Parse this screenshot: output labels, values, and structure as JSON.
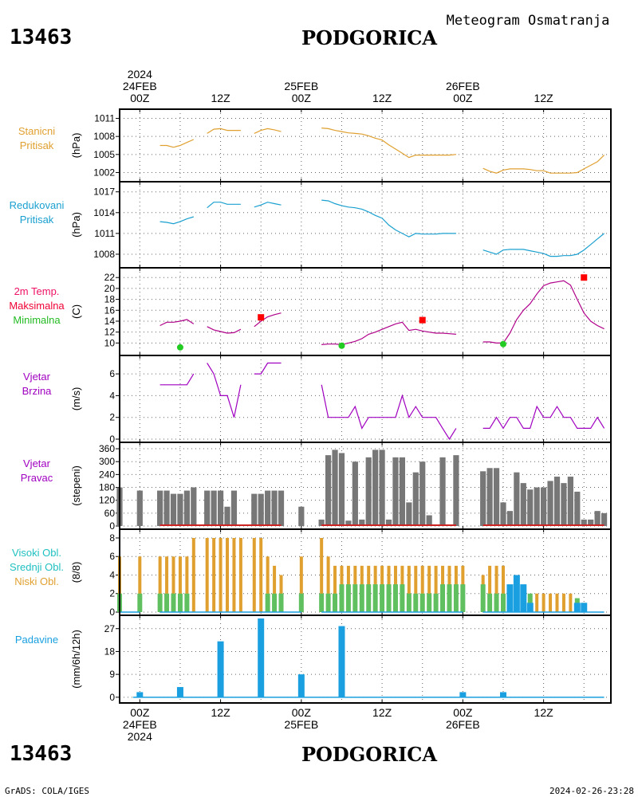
{
  "header": {
    "station_id": "13463",
    "station_name": "PODGORICA",
    "product": "Meteogram Osmatranja"
  },
  "footer": {
    "station_id": "13463",
    "station_name": "PODGORICA",
    "credit": "GrADS: COLA/IGES",
    "timestamp": "2024-02-26-23:28"
  },
  "time_axis": {
    "top_labels": [
      {
        "t": 0,
        "lines": [
          "2024",
          "24FEB",
          "00Z"
        ]
      },
      {
        "t": 12,
        "lines": [
          "12Z"
        ]
      },
      {
        "t": 24,
        "lines": [
          "25FEB",
          "00Z"
        ]
      },
      {
        "t": 36,
        "lines": [
          "12Z"
        ]
      },
      {
        "t": 48,
        "lines": [
          "26FEB",
          "00Z"
        ]
      },
      {
        "t": 60,
        "lines": [
          "12Z"
        ]
      }
    ],
    "bottom_labels": [
      {
        "t": 0,
        "lines": [
          "00Z",
          "24FEB",
          "2024"
        ]
      },
      {
        "t": 12,
        "lines": [
          "12Z"
        ]
      },
      {
        "t": 24,
        "lines": [
          "00Z",
          "25FEB"
        ]
      },
      {
        "t": 36,
        "lines": [
          "12Z"
        ]
      },
      {
        "t": 48,
        "lines": [
          "00Z",
          "26FEB"
        ]
      },
      {
        "t": 60,
        "lines": [
          "12Z"
        ]
      }
    ],
    "range_hours": [
      -3,
      70
    ]
  },
  "colors": {
    "station_pressure": "#e0a030",
    "reduced_pressure": "#1aa0d0",
    "temperature": "#b0008a",
    "max_marker": "#ff0000",
    "min_marker": "#22cc22",
    "wind": "#a000c0",
    "direction_bar": "#777777",
    "direction_base": "#cc2222",
    "high_cloud": "#20c0c0",
    "mid_cloud": "#60c060",
    "low_cloud": "#e0a030",
    "precip": "#1aa0e0"
  },
  "chart_data": [
    {
      "type": "line",
      "panel_label": [
        "Stanicni",
        "Pritisak"
      ],
      "ylabel": "(hPa)",
      "ylim": [
        1001,
        1012
      ],
      "yticks": [
        1002,
        1005,
        1008,
        1011
      ],
      "segments": [
        {
          "x": [
            3,
            4,
            5,
            6,
            7,
            8
          ],
          "y": [
            1006.5,
            1006.5,
            1006.2,
            1006.5,
            1007,
            1007.5
          ]
        },
        {
          "x": [
            10,
            11,
            12,
            13,
            14,
            15
          ],
          "y": [
            1008.5,
            1009.2,
            1009.3,
            1009,
            1009,
            1009
          ]
        },
        {
          "x": [
            17,
            18,
            19,
            20,
            21
          ],
          "y": [
            1008.5,
            1009,
            1009.3,
            1009.1,
            1008.8
          ]
        },
        {
          "x": [
            27,
            28,
            29,
            30,
            31,
            32,
            33,
            34,
            35,
            36,
            37,
            38,
            39,
            40,
            41,
            42,
            43,
            44,
            45,
            46,
            47
          ],
          "y": [
            1009.4,
            1009.3,
            1009,
            1008.8,
            1008.6,
            1008.5,
            1008.4,
            1008.1,
            1007.7,
            1007.4,
            1006.6,
            1005.9,
            1005.2,
            1004.5,
            1004.9,
            1004.9,
            1004.9,
            1004.9,
            1004.9,
            1004.9,
            1005
          ]
        },
        {
          "x": [
            51,
            52,
            53,
            54,
            55,
            56,
            57,
            58,
            59,
            60,
            61,
            62,
            63,
            64,
            65,
            66,
            67,
            68,
            69
          ],
          "y": [
            1002.7,
            1002.2,
            1001.9,
            1002.4,
            1002.6,
            1002.6,
            1002.6,
            1002.5,
            1002.3,
            1002.3,
            1001.9,
            1001.9,
            1001.9,
            1001.9,
            1002,
            1002.6,
            1003.2,
            1003.8,
            1004.9
          ]
        }
      ]
    },
    {
      "type": "line",
      "panel_label": [
        "Redukovani",
        "Pritisak"
      ],
      "ylabel": "(hPa)",
      "ylim": [
        1006.5,
        1018
      ],
      "yticks": [
        1008,
        1011,
        1014,
        1017
      ],
      "segments": [
        {
          "x": [
            3,
            4,
            5,
            6,
            7,
            8
          ],
          "y": [
            1012.7,
            1012.6,
            1012.4,
            1012.7,
            1013.1,
            1013.4
          ]
        },
        {
          "x": [
            10,
            11,
            12,
            13,
            14,
            15
          ],
          "y": [
            1014.7,
            1015.5,
            1015.5,
            1015.2,
            1015.2,
            1015.2
          ]
        },
        {
          "x": [
            17,
            18,
            19,
            20,
            21
          ],
          "y": [
            1014.8,
            1015.1,
            1015.5,
            1015.3,
            1015.1
          ]
        },
        {
          "x": [
            27,
            28,
            29,
            30,
            31,
            32,
            33,
            34,
            35,
            36,
            37,
            38,
            39,
            40,
            41,
            42,
            43,
            44,
            45,
            46,
            47
          ],
          "y": [
            1015.8,
            1015.7,
            1015.3,
            1015,
            1014.8,
            1014.7,
            1014.5,
            1014.1,
            1013.6,
            1013.2,
            1012.2,
            1011.5,
            1011,
            1010.5,
            1011,
            1010.9,
            1010.9,
            1010.9,
            1011,
            1011,
            1011
          ]
        },
        {
          "x": [
            51,
            52,
            53,
            54,
            55,
            56,
            57,
            58,
            59,
            60,
            61,
            62,
            63,
            64,
            65,
            66,
            67,
            68,
            69
          ],
          "y": [
            1008.6,
            1008.3,
            1008,
            1008.6,
            1008.7,
            1008.7,
            1008.7,
            1008.5,
            1008.3,
            1008.1,
            1007.7,
            1007.7,
            1007.8,
            1007.8,
            1008,
            1008.6,
            1009.4,
            1010.2,
            1011
          ]
        }
      ]
    },
    {
      "type": "line",
      "panel_label": [
        "2m Temp.",
        "Maksimalna",
        "Minimalna"
      ],
      "ylabel": "(C)",
      "ylim": [
        8.3,
        23.2
      ],
      "yticks": [
        10,
        12,
        14,
        16,
        18,
        20,
        22
      ],
      "segments": [
        {
          "x": [
            3,
            4,
            5,
            6,
            7,
            8
          ],
          "y": [
            13.2,
            13.8,
            13.8,
            14,
            14.3,
            13.5
          ]
        },
        {
          "x": [
            10,
            11,
            12,
            13,
            14,
            15
          ],
          "y": [
            13,
            12.4,
            12.1,
            11.8,
            11.9,
            12.5
          ]
        },
        {
          "x": [
            17,
            18,
            19,
            20,
            21
          ],
          "y": [
            13,
            14,
            14.8,
            15.2,
            15.5
          ]
        },
        {
          "x": [
            27,
            28,
            29,
            30,
            31,
            32,
            33,
            34,
            35,
            36,
            37,
            38,
            39,
            40,
            41,
            42,
            43,
            44,
            45,
            46,
            47
          ],
          "y": [
            9.7,
            9.8,
            9.8,
            9.7,
            10,
            10.3,
            10.8,
            11.6,
            12,
            12.5,
            13,
            13.5,
            13.8,
            12.3,
            12.5,
            12.2,
            12,
            11.8,
            11.8,
            11.7,
            11.6
          ]
        },
        {
          "x": [
            51,
            52,
            53,
            54,
            55,
            56,
            57,
            58,
            59,
            60,
            61,
            62,
            63,
            64,
            65,
            66,
            67,
            68,
            69
          ],
          "y": [
            10.2,
            10.2,
            10,
            10,
            11.8,
            14.3,
            16,
            17.2,
            19,
            20.5,
            21,
            21.2,
            21.4,
            20.6,
            18,
            15.5,
            14,
            13.2,
            12.6
          ]
        }
      ],
      "max_points": [
        {
          "x": 18,
          "y": 14.7
        },
        {
          "x": 42,
          "y": 14.2
        },
        {
          "x": 66,
          "y": 22
        }
      ],
      "min_points": [
        {
          "x": 6,
          "y": 9.2
        },
        {
          "x": 30,
          "y": 9.5
        },
        {
          "x": 54,
          "y": 9.8
        }
      ]
    },
    {
      "type": "line",
      "panel_label": [
        "Vjetar",
        "Brzina"
      ],
      "ylabel": "(m/s)",
      "ylim": [
        0,
        7.4
      ],
      "yticks": [
        0,
        2,
        4,
        6
      ],
      "segments": [
        {
          "x": [
            3,
            4,
            5,
            6,
            7,
            8
          ],
          "y": [
            5,
            5,
            5,
            5,
            5,
            6
          ]
        },
        {
          "x": [
            10,
            11,
            12,
            13,
            14,
            15
          ],
          "y": [
            7,
            6,
            4,
            4,
            2,
            5
          ]
        },
        {
          "x": [
            17,
            18,
            19,
            20,
            21
          ],
          "y": [
            6,
            6,
            7,
            7,
            7
          ]
        },
        {
          "x": [
            27,
            28,
            29,
            30,
            31,
            32,
            33,
            34,
            35,
            36,
            37,
            38,
            39,
            40,
            41,
            42,
            43,
            44,
            45,
            46,
            47
          ],
          "y": [
            5,
            2,
            2,
            2,
            2,
            3,
            1,
            2,
            2,
            2,
            2,
            2,
            4,
            2,
            3,
            2,
            2,
            2,
            1,
            0,
            1
          ]
        },
        {
          "x": [
            51,
            52,
            53,
            54,
            55,
            56,
            57,
            58,
            59,
            60,
            61,
            62,
            63,
            64,
            65,
            66,
            67,
            68,
            69
          ],
          "y": [
            1,
            1,
            2,
            1,
            2,
            2,
            1,
            1,
            3,
            2,
            2,
            3,
            2,
            2,
            1,
            1,
            1,
            2,
            1
          ]
        }
      ]
    },
    {
      "type": "bar",
      "panel_label": [
        "Vjetar",
        "Pravac"
      ],
      "ylabel": "(stepeni)",
      "ylim": [
        0,
        375
      ],
      "yticks": [
        0,
        60,
        120,
        180,
        240,
        300,
        360
      ],
      "x": [
        -3,
        0,
        3,
        4,
        5,
        6,
        7,
        8,
        10,
        11,
        12,
        13,
        14,
        15,
        17,
        18,
        19,
        20,
        21,
        24,
        27,
        28,
        29,
        30,
        31,
        32,
        33,
        34,
        35,
        36,
        37,
        38,
        39,
        40,
        41,
        42,
        43,
        44,
        45,
        46,
        47,
        48,
        51,
        52,
        53,
        54,
        55,
        56,
        57,
        58,
        59,
        60,
        61,
        62,
        63,
        64,
        65,
        66,
        67,
        68,
        69
      ],
      "values": [
        180,
        165,
        165,
        165,
        150,
        150,
        165,
        180,
        165,
        165,
        165,
        90,
        165,
        0,
        150,
        150,
        165,
        165,
        165,
        90,
        30,
        330,
        355,
        340,
        25,
        300,
        30,
        320,
        355,
        355,
        30,
        320,
        320,
        110,
        250,
        300,
        50,
        0,
        320,
        0,
        330,
        0,
        255,
        270,
        270,
        110,
        70,
        250,
        200,
        170,
        180,
        180,
        210,
        230,
        200,
        230,
        160,
        30,
        30,
        70,
        60
      ]
    },
    {
      "type": "bar",
      "panel_label": [
        "Visoki Obl.",
        "Srednji Obl.",
        "Niski Obl."
      ],
      "ylabel": "(8/8)",
      "ylim": [
        0,
        8.6
      ],
      "yticks": [
        0,
        2,
        4,
        6,
        8
      ],
      "x": [
        -3,
        0,
        3,
        4,
        5,
        6,
        7,
        8,
        10,
        11,
        12,
        13,
        14,
        15,
        17,
        18,
        19,
        20,
        21,
        24,
        27,
        28,
        29,
        30,
        31,
        32,
        33,
        34,
        35,
        36,
        37,
        38,
        39,
        40,
        41,
        42,
        43,
        44,
        45,
        46,
        47,
        48,
        51,
        52,
        53,
        54,
        55,
        56,
        57,
        58,
        59,
        60,
        61,
        62,
        63,
        64,
        65,
        66,
        67,
        68,
        69
      ],
      "series": [
        {
          "name": "Niski Obl.",
          "values": [
            6,
            6,
            6,
            6,
            6,
            6,
            6,
            8,
            8,
            8,
            8,
            8,
            8,
            8,
            8,
            8,
            6,
            5,
            4,
            6,
            8,
            6,
            5,
            5,
            5,
            5,
            5,
            5,
            5,
            5,
            5,
            5,
            5,
            5,
            5,
            5,
            5,
            5,
            5,
            5,
            5,
            5,
            4,
            5,
            5,
            5,
            0,
            0,
            0,
            0,
            2,
            2,
            2,
            2,
            2,
            2,
            1,
            0,
            0,
            0,
            0
          ]
        },
        {
          "name": "Srednji Obl.",
          "values": [
            2,
            2,
            2,
            2,
            2,
            2,
            2,
            0,
            0,
            0,
            0,
            0,
            0,
            0,
            0,
            0,
            2,
            2,
            2,
            2,
            2,
            2,
            2,
            3,
            3,
            3,
            3,
            3,
            3,
            3,
            3,
            3,
            3,
            2,
            2,
            2,
            2,
            2,
            3,
            3,
            3,
            3,
            3,
            2,
            2,
            2,
            2,
            2,
            2,
            2,
            0,
            0,
            0,
            0,
            0,
            0,
            1.5,
            1,
            0,
            0,
            0
          ]
        },
        {
          "name": "Visoki Obl.",
          "values": [
            0,
            0,
            0,
            0,
            0,
            0,
            0,
            0,
            0,
            0,
            0,
            0,
            0,
            0,
            0,
            0,
            0,
            0,
            0,
            0,
            0,
            0,
            0,
            0,
            0,
            0,
            0,
            0,
            0,
            0,
            0,
            0,
            0,
            0,
            0,
            0,
            0,
            0,
            0,
            0,
            0,
            0,
            0,
            0,
            0,
            0,
            3,
            4,
            3,
            1,
            0,
            0,
            0,
            0,
            0,
            0,
            1,
            1,
            0,
            0,
            0
          ]
        }
      ]
    },
    {
      "type": "bar",
      "panel_label": [
        "Padavine"
      ],
      "ylabel": "(mm/6h/12h)",
      "ylim": [
        -1,
        31
      ],
      "yticks": [
        0,
        9,
        18,
        27
      ],
      "x": [
        0,
        6,
        12,
        18,
        24,
        30,
        48,
        54
      ],
      "values": [
        2,
        4,
        22,
        31,
        9,
        28,
        2,
        2
      ]
    }
  ]
}
